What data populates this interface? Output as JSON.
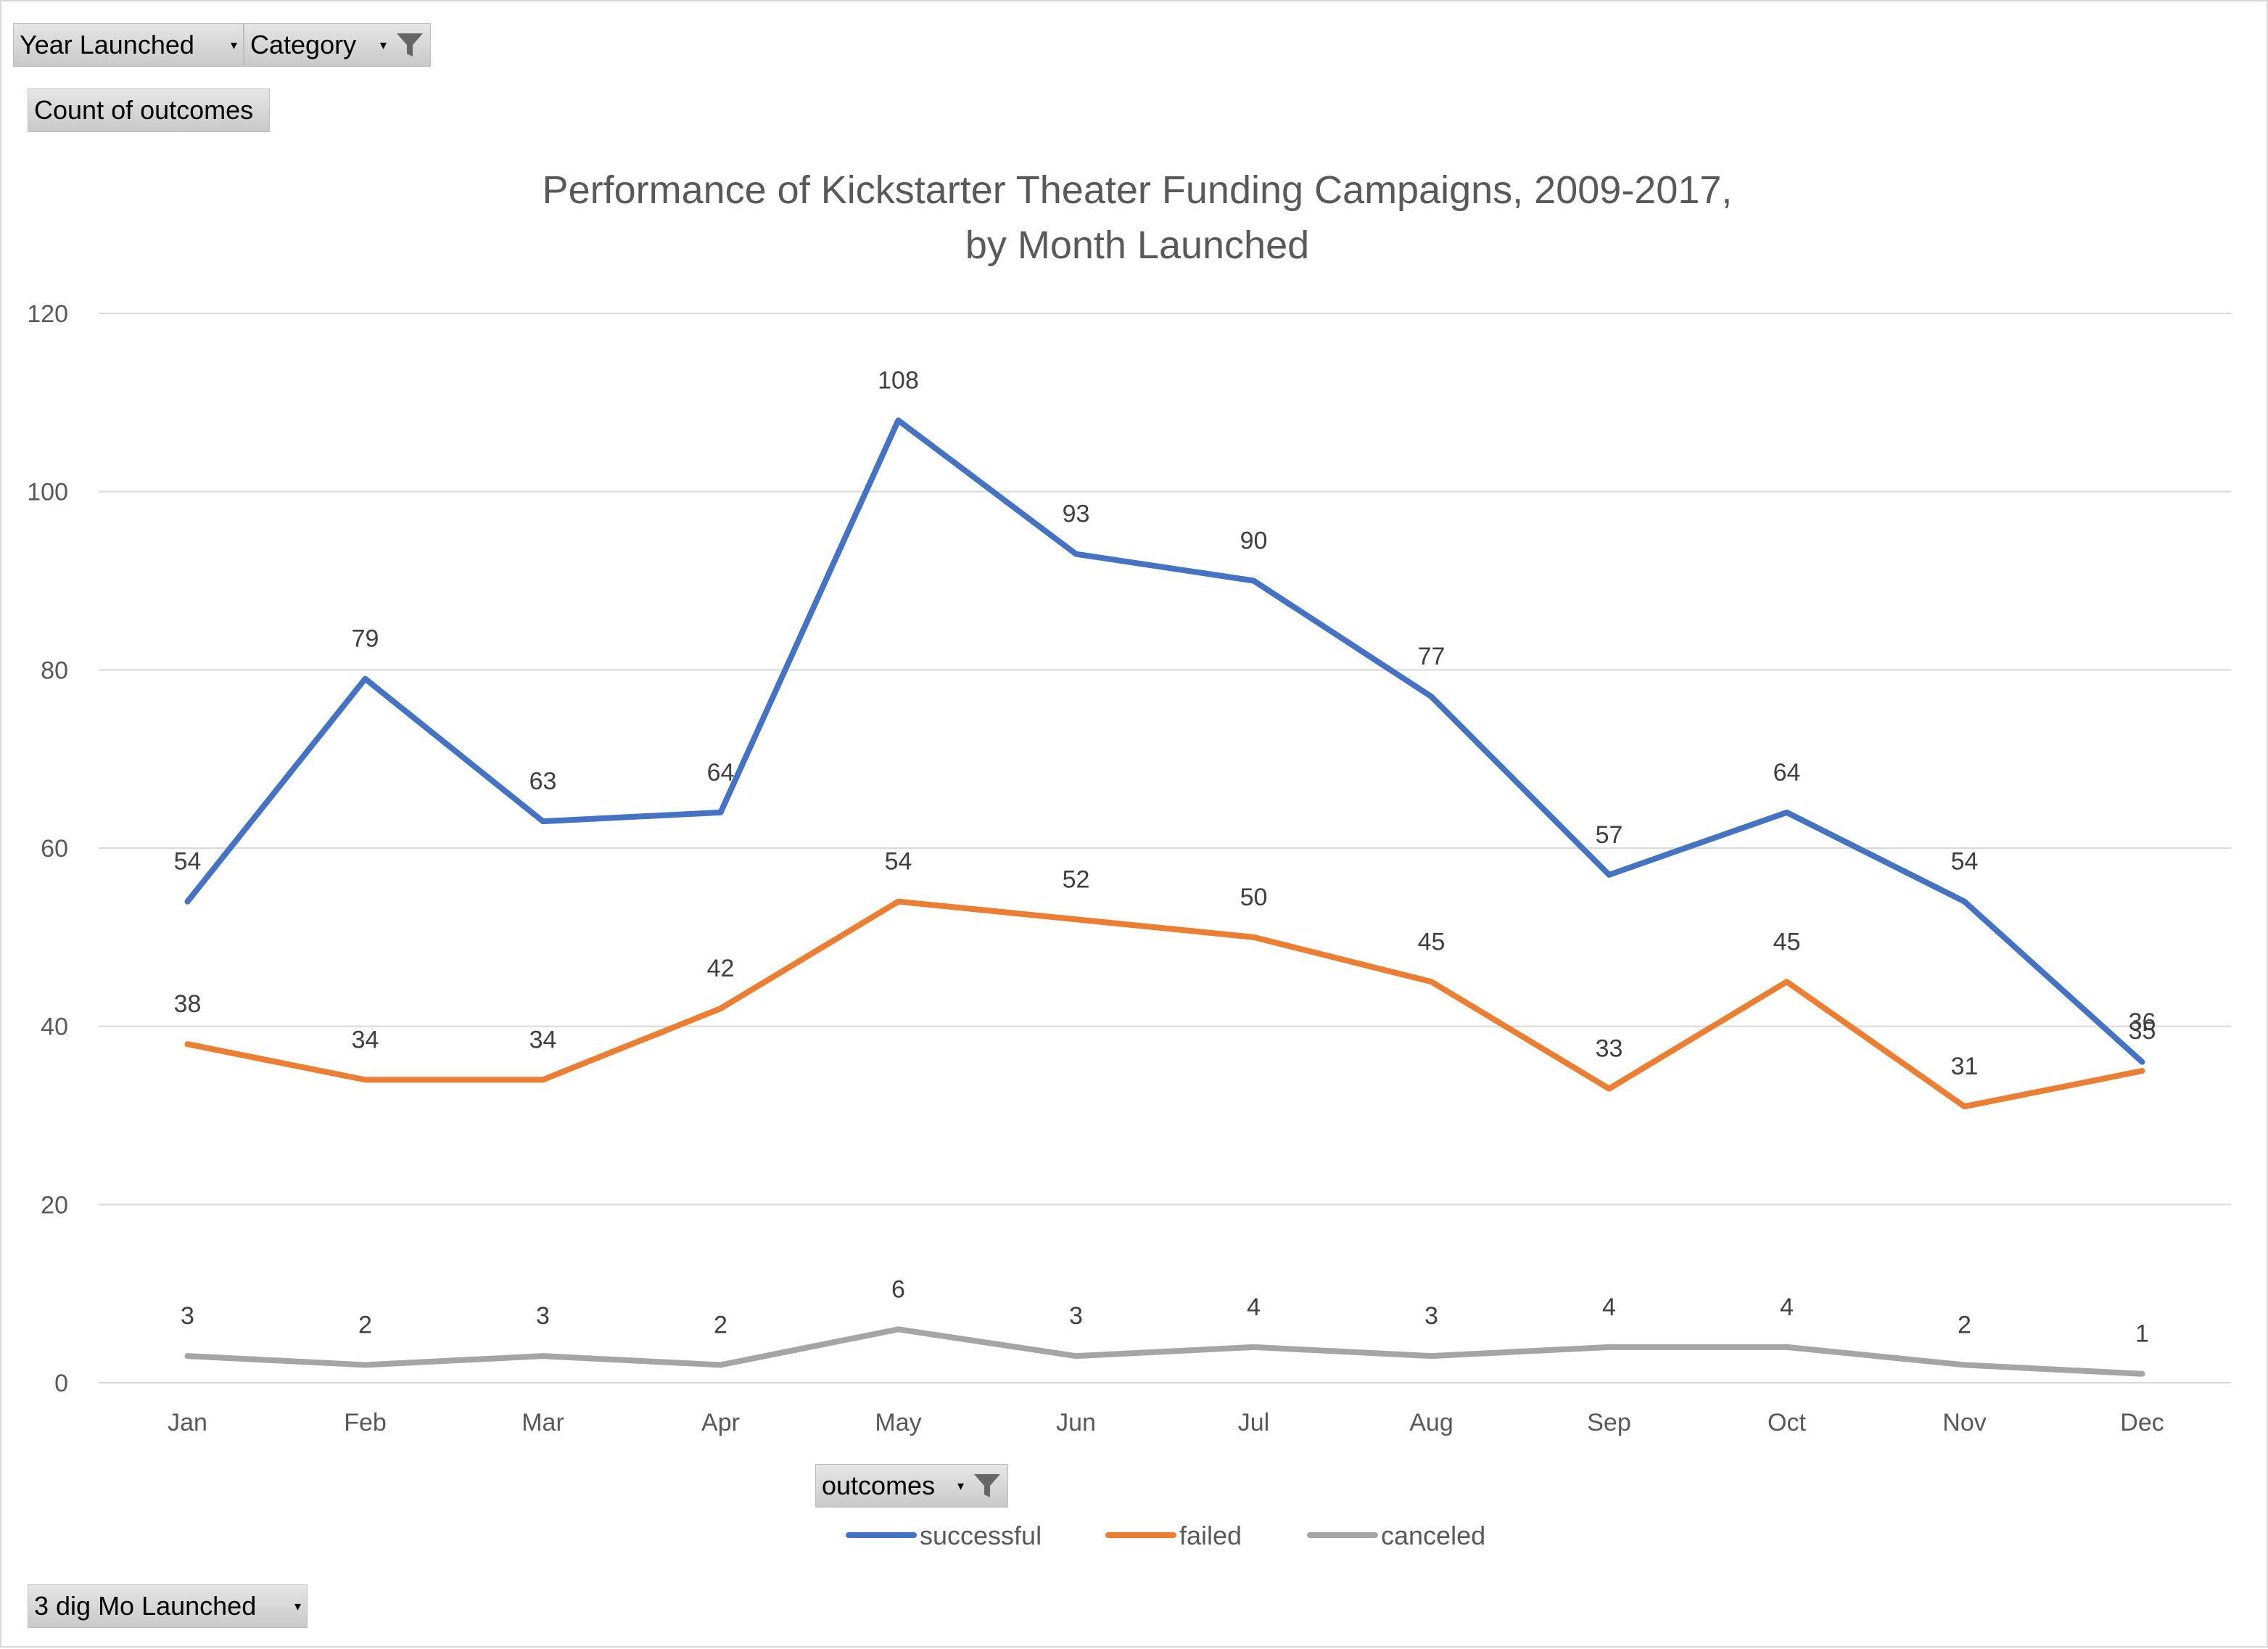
{
  "fields": {
    "year_launched": "Year Launched",
    "category": "Category",
    "count_of_outcomes": "Count of outcomes",
    "outcomes": "outcomes",
    "month_launched": "3 dig Mo Launched"
  },
  "chart_data": {
    "type": "line",
    "title_line1": "Performance of Kickstarter Theater Funding Campaigns, 2009-2017,",
    "title_line2": "by Month Launched",
    "categories": [
      "Jan",
      "Feb",
      "Mar",
      "Apr",
      "May",
      "Jun",
      "Jul",
      "Aug",
      "Sep",
      "Oct",
      "Nov",
      "Dec"
    ],
    "ylim": [
      0,
      120
    ],
    "yticks": [
      0,
      20,
      40,
      60,
      80,
      100,
      120
    ],
    "grid": true,
    "legend_position": "bottom",
    "series": [
      {
        "name": "successful",
        "color": "#4472C4",
        "values": [
          54,
          79,
          63,
          64,
          108,
          93,
          90,
          77,
          57,
          64,
          54,
          36
        ]
      },
      {
        "name": "failed",
        "color": "#ED7D31",
        "values": [
          38,
          34,
          34,
          42,
          54,
          52,
          50,
          45,
          33,
          45,
          31,
          35
        ]
      },
      {
        "name": "canceled",
        "color": "#A5A5A5",
        "values": [
          3,
          2,
          3,
          2,
          6,
          3,
          4,
          3,
          4,
          4,
          2,
          1
        ]
      }
    ]
  }
}
